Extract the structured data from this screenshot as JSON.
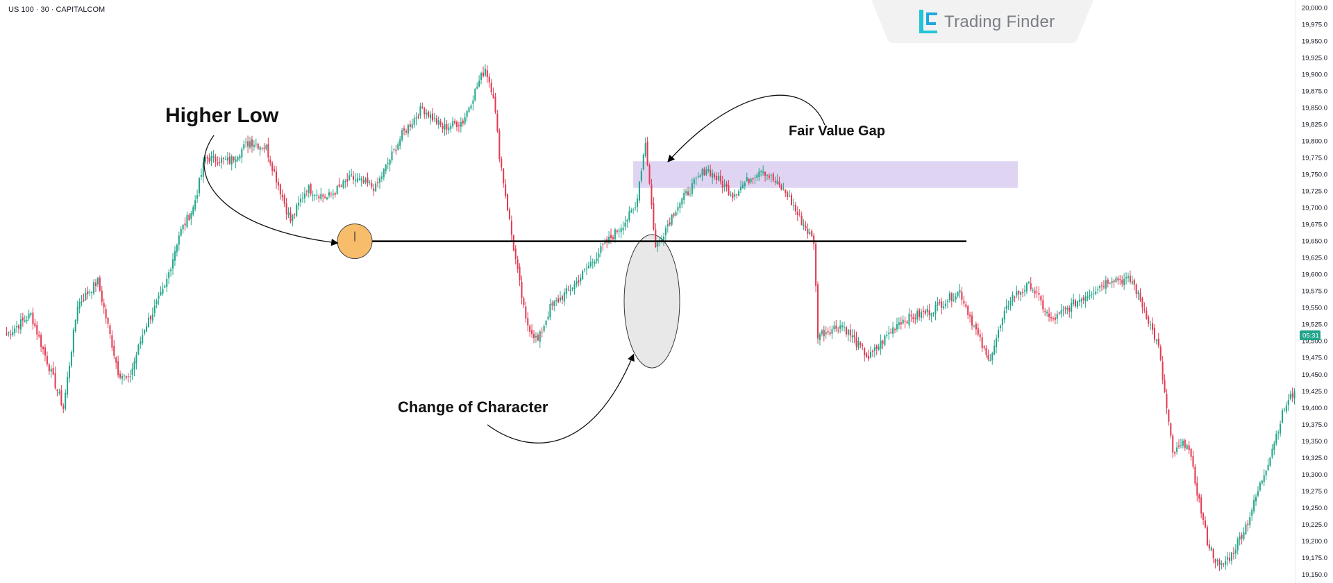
{
  "header": {
    "symbol": "US 100 · 30 · CAPITALCOM",
    "brand": "Trading Finder"
  },
  "colors": {
    "bull": "#22a58a",
    "bear": "#e23a52",
    "fvg_fill": "#d9cdf0",
    "orb_fill": "#f8bd6b",
    "ellipse_fill": "#e6e6e6",
    "price_tag": "#22a58a",
    "background": "#ffffff"
  },
  "chart_data": {
    "type": "candlestick",
    "instrument": "US 100",
    "timeframe": "30",
    "ylim": [
      19137.5,
      20000
    ],
    "y_ticks": [
      20000,
      19975,
      19950,
      19925,
      19900,
      19875,
      19850,
      19825,
      19800,
      19775,
      19750,
      19725,
      19700,
      19675,
      19650,
      19625,
      19600,
      19575,
      19550,
      19525,
      19500,
      19475,
      19450,
      19425,
      19400,
      19375,
      19350,
      19325,
      19300,
      19275,
      19250,
      19225,
      19200,
      19175,
      19150
    ],
    "y_tick_labels": [
      "20,000.0",
      "19,975.0",
      "19,950.0",
      "19,925.0",
      "19,900.0",
      "19,875.0",
      "19,850.0",
      "19,825.0",
      "19,800.0",
      "19,775.0",
      "19,750.0",
      "19,725.0",
      "19,700.0",
      "19,675.0",
      "19,650.0",
      "19,625.0",
      "19,600.0",
      "19,575.0",
      "19,550.0",
      "19,525.0",
      "19,500.0",
      "19,475.0",
      "19,450.0",
      "19,425.0",
      "19,400.0",
      "19,375.0",
      "19,350.0",
      "19,325.0",
      "19,300.0",
      "19,275.0",
      "19,250.0",
      "19,225.0",
      "19,200.0",
      "19,175.0",
      "19,150.0"
    ],
    "current_price_label": "05:31",
    "current_price_level": 19509,
    "key_points": [
      [
        0,
        19510
      ],
      [
        12,
        19540
      ],
      [
        20,
        19470
      ],
      [
        28,
        19400
      ],
      [
        35,
        19555
      ],
      [
        45,
        19590
      ],
      [
        55,
        19455
      ],
      [
        60,
        19440
      ],
      [
        68,
        19520
      ],
      [
        78,
        19580
      ],
      [
        85,
        19660
      ],
      [
        92,
        19700
      ],
      [
        98,
        19775
      ],
      [
        110,
        19770
      ],
      [
        120,
        19800
      ],
      [
        128,
        19790
      ],
      [
        140,
        19680
      ],
      [
        148,
        19730
      ],
      [
        158,
        19715
      ],
      [
        170,
        19745
      ],
      [
        182,
        19730
      ],
      [
        195,
        19810
      ],
      [
        205,
        19850
      ],
      [
        215,
        19820
      ],
      [
        225,
        19830
      ],
      [
        233,
        19890
      ],
      [
        236,
        19910
      ],
      [
        240,
        19870
      ],
      [
        243,
        19780
      ],
      [
        246,
        19720
      ],
      [
        250,
        19640
      ],
      [
        256,
        19530
      ],
      [
        262,
        19500
      ],
      [
        268,
        19550
      ],
      [
        280,
        19585
      ],
      [
        295,
        19645
      ],
      [
        305,
        19680
      ],
      [
        310,
        19700
      ],
      [
        315,
        19800
      ],
      [
        320,
        19640
      ],
      [
        330,
        19700
      ],
      [
        345,
        19760
      ],
      [
        358,
        19720
      ],
      [
        372,
        19760
      ],
      [
        385,
        19720
      ],
      [
        390,
        19690
      ],
      [
        398,
        19650
      ],
      [
        400,
        19510
      ],
      [
        412,
        19525
      ],
      [
        425,
        19475
      ],
      [
        440,
        19530
      ],
      [
        455,
        19545
      ],
      [
        470,
        19575
      ],
      [
        484,
        19470
      ],
      [
        495,
        19565
      ],
      [
        505,
        19585
      ],
      [
        515,
        19530
      ],
      [
        530,
        19565
      ],
      [
        545,
        19595
      ],
      [
        555,
        19590
      ],
      [
        562,
        19540
      ],
      [
        568,
        19490
      ],
      [
        575,
        19330
      ],
      [
        582,
        19350
      ],
      [
        592,
        19200
      ],
      [
        598,
        19160
      ],
      [
        604,
        19180
      ],
      [
        612,
        19230
      ],
      [
        622,
        19320
      ],
      [
        630,
        19400
      ],
      [
        635,
        19425
      ]
    ],
    "key_levels": {
      "higher_low": 19650,
      "fvg_top": 19770,
      "fvg_bottom": 19730,
      "ellipse_high": 19660,
      "ellipse_low": 19460
    },
    "annotations": [
      "Higher Low",
      "Fair Value Gap",
      "Change of Character"
    ]
  }
}
